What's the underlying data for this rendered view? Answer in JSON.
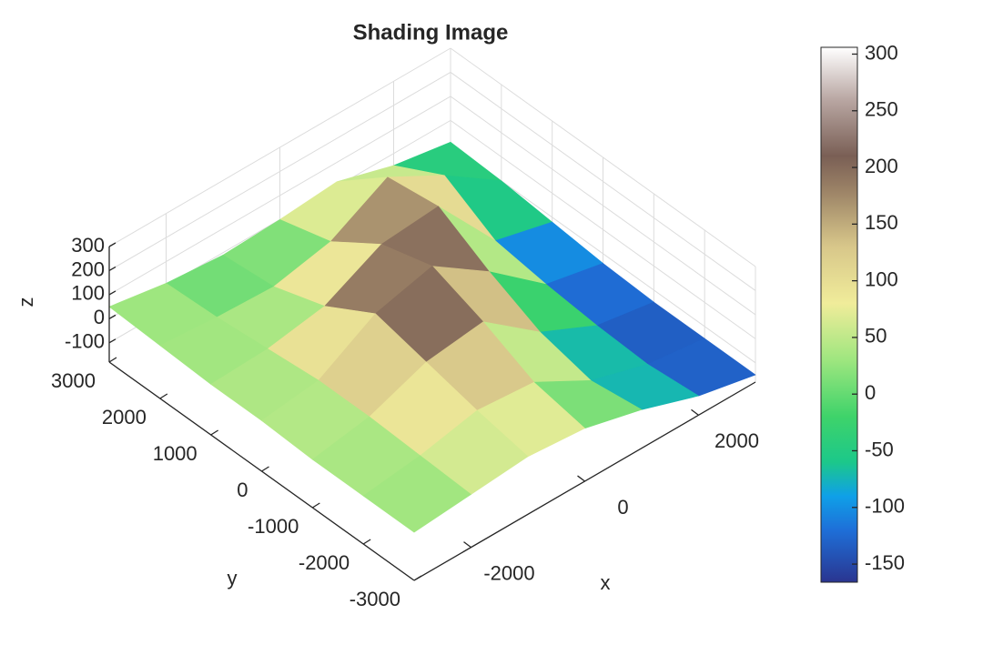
{
  "chart_data": {
    "type": "surface",
    "title": "Shading Image",
    "xlabel": "x",
    "ylabel": "y",
    "zlabel": "z",
    "x": [
      -3000,
      -2000,
      -1000,
      0,
      1000,
      2000,
      3000
    ],
    "y": [
      -3000,
      -2000,
      -1000,
      0,
      1000,
      2000,
      3000
    ],
    "z": [
      [
        20,
        40,
        60,
        40,
        -20,
        -100,
        -150
      ],
      [
        20,
        50,
        100,
        80,
        -50,
        -120,
        -150
      ],
      [
        20,
        60,
        150,
        180,
        0,
        -110,
        -150
      ],
      [
        30,
        60,
        200,
        260,
        100,
        -90,
        -140
      ],
      [
        30,
        40,
        80,
        200,
        220,
        -60,
        -120
      ],
      [
        40,
        20,
        10,
        60,
        190,
        60,
        -100
      ],
      [
        50,
        10,
        -10,
        0,
        20,
        -50,
        -90
      ]
    ],
    "xlim": [
      -3000,
      3000
    ],
    "ylim": [
      -3000,
      3000
    ],
    "zlim": [
      -180,
      300
    ],
    "xticks": [
      -2000,
      0,
      2000
    ],
    "yticks": [
      -3000,
      -2000,
      -1000,
      0,
      1000,
      2000,
      3000
    ],
    "zticks": [
      -100,
      0,
      100,
      200,
      300
    ],
    "grid": true,
    "colorbar": {
      "clim": [
        -166,
        306
      ],
      "ticks": [
        -150,
        -100,
        -50,
        0,
        50,
        100,
        150,
        200,
        250,
        300
      ],
      "colormap": [
        [
          -166,
          "#2a3590"
        ],
        [
          -120,
          "#1e6fd8"
        ],
        [
          -90,
          "#0fa0e8"
        ],
        [
          -60,
          "#1cc88a"
        ],
        [
          -20,
          "#3ed36a"
        ],
        [
          30,
          "#9ee67f"
        ],
        [
          80,
          "#f0ec9a"
        ],
        [
          130,
          "#d8c78a"
        ],
        [
          180,
          "#9b8266"
        ],
        [
          210,
          "#7a5f55"
        ],
        [
          260,
          "#b9a7a3"
        ],
        [
          306,
          "#ffffff"
        ]
      ]
    }
  }
}
